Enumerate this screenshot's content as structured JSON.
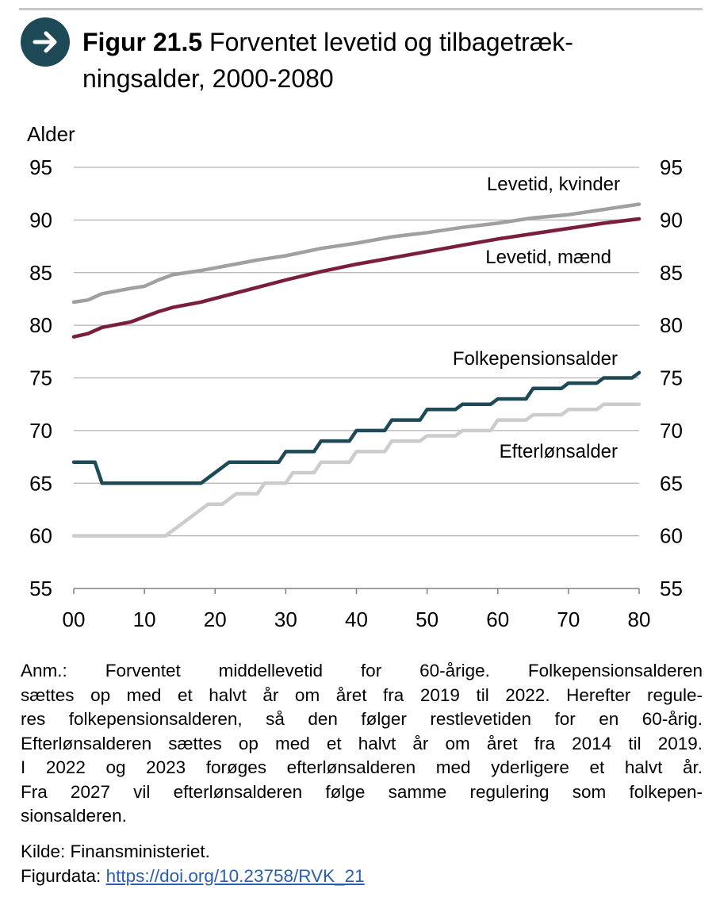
{
  "figure": {
    "label": "Figur 21.5",
    "title": "Forventet levetid og tilbagetræk-ningsalder, 2000-2080",
    "title_line1": "Forventet levetid og tilbagetræk-",
    "title_line2": "ningsalder, 2000-2080",
    "badge_icon": "arrow-right-icon",
    "badge_color": "#1e4a57"
  },
  "notes": {
    "lines": [
      "Anm.: Forventet middellevetid for 60-årige. Folkepensionsalderen",
      "sættes op med et halvt år om året fra 2019 til 2022. Herefter regule-",
      "res folkepensionsalderen, så den følger restlevetiden for en 60-årig.",
      "Efterlønsalderen sættes op med et halvt år om året fra 2014 til 2019.",
      "I 2022 og 2023 forøges efterlønsalderen med yderligere et halvt år.",
      "Fra 2027 vil efterlønsalderen følge samme regulering som folkepen-",
      "sionsalderen."
    ],
    "source": "Kilde: Finansministeriet.",
    "figurdata_label": "Figurdata:",
    "figurdata_link": "https://doi.org/10.23758/RVK_21"
  },
  "chart_data": {
    "type": "line",
    "ylabel": "Alder",
    "ylim": [
      55,
      95
    ],
    "yticks": [
      55,
      60,
      65,
      70,
      75,
      80,
      85,
      90,
      95
    ],
    "ytick_labels": [
      "55",
      "60",
      "65",
      "70",
      "75",
      "80",
      "85",
      "90",
      "95"
    ],
    "xlim": [
      2000,
      2080
    ],
    "xticks": [
      2000,
      2010,
      2020,
      2030,
      2040,
      2050,
      2060,
      2070,
      2080
    ],
    "xtick_labels": [
      "00",
      "10",
      "20",
      "30",
      "40",
      "50",
      "60",
      "70",
      "80"
    ],
    "grid": true,
    "dual_y_axis": true,
    "series": [
      {
        "name": "Levetid, kvinder",
        "color": "#a0a0a0",
        "points": [
          [
            2000,
            82.2
          ],
          [
            2002,
            82.4
          ],
          [
            2004,
            83.0
          ],
          [
            2008,
            83.5
          ],
          [
            2010,
            83.7
          ],
          [
            2012,
            84.3
          ],
          [
            2014,
            84.8
          ],
          [
            2018,
            85.2
          ],
          [
            2022,
            85.7
          ],
          [
            2026,
            86.2
          ],
          [
            2030,
            86.6
          ],
          [
            2035,
            87.3
          ],
          [
            2040,
            87.8
          ],
          [
            2045,
            88.4
          ],
          [
            2050,
            88.8
          ],
          [
            2055,
            89.3
          ],
          [
            2060,
            89.7
          ],
          [
            2065,
            90.2
          ],
          [
            2070,
            90.5
          ],
          [
            2075,
            91.0
          ],
          [
            2080,
            91.5
          ]
        ]
      },
      {
        "name": "Levetid, mænd",
        "color": "#7a1e3c",
        "points": [
          [
            2000,
            78.9
          ],
          [
            2002,
            79.2
          ],
          [
            2004,
            79.8
          ],
          [
            2008,
            80.3
          ],
          [
            2010,
            80.8
          ],
          [
            2012,
            81.3
          ],
          [
            2014,
            81.7
          ],
          [
            2018,
            82.2
          ],
          [
            2022,
            82.9
          ],
          [
            2026,
            83.6
          ],
          [
            2030,
            84.3
          ],
          [
            2035,
            85.1
          ],
          [
            2040,
            85.8
          ],
          [
            2045,
            86.4
          ],
          [
            2050,
            87.0
          ],
          [
            2055,
            87.6
          ],
          [
            2060,
            88.2
          ],
          [
            2065,
            88.7
          ],
          [
            2070,
            89.2
          ],
          [
            2075,
            89.7
          ],
          [
            2080,
            90.1
          ]
        ]
      },
      {
        "name": "Folkepensionsalder",
        "color": "#1e4a57",
        "points": [
          [
            2000,
            67
          ],
          [
            2003,
            67
          ],
          [
            2004,
            65
          ],
          [
            2018,
            65
          ],
          [
            2022,
            67
          ],
          [
            2029,
            67
          ],
          [
            2030,
            68
          ],
          [
            2034,
            68
          ],
          [
            2035,
            69
          ],
          [
            2039,
            69
          ],
          [
            2040,
            70
          ],
          [
            2044,
            70
          ],
          [
            2045,
            71
          ],
          [
            2049,
            71
          ],
          [
            2050,
            72
          ],
          [
            2054,
            72
          ],
          [
            2055,
            72.5
          ],
          [
            2059,
            72.5
          ],
          [
            2060,
            73
          ],
          [
            2064,
            73
          ],
          [
            2065,
            74
          ],
          [
            2069,
            74
          ],
          [
            2070,
            74.5
          ],
          [
            2074,
            74.5
          ],
          [
            2075,
            75
          ],
          [
            2079,
            75
          ],
          [
            2080,
            75.5
          ]
        ]
      },
      {
        "name": "Efterlønsalder",
        "color": "#cccccc",
        "points": [
          [
            2000,
            60
          ],
          [
            2013,
            60
          ],
          [
            2019,
            63
          ],
          [
            2021,
            63
          ],
          [
            2023,
            64
          ],
          [
            2026,
            64
          ],
          [
            2027,
            65
          ],
          [
            2030,
            65
          ],
          [
            2031,
            66
          ],
          [
            2034,
            66
          ],
          [
            2035,
            67
          ],
          [
            2039,
            67
          ],
          [
            2040,
            68
          ],
          [
            2044,
            68
          ],
          [
            2045,
            69
          ],
          [
            2049,
            69
          ],
          [
            2050,
            69.5
          ],
          [
            2054,
            69.5
          ],
          [
            2055,
            70
          ],
          [
            2059,
            70
          ],
          [
            2060,
            71
          ],
          [
            2064,
            71
          ],
          [
            2065,
            71.5
          ],
          [
            2069,
            71.5
          ],
          [
            2070,
            72
          ],
          [
            2074,
            72
          ],
          [
            2075,
            72.5
          ],
          [
            2080,
            72.5
          ]
        ]
      }
    ],
    "annotations": [
      "Levetid, kvinder",
      "Levetid, mænd",
      "Folkepensionsalder",
      "Efterlønsalder"
    ]
  }
}
